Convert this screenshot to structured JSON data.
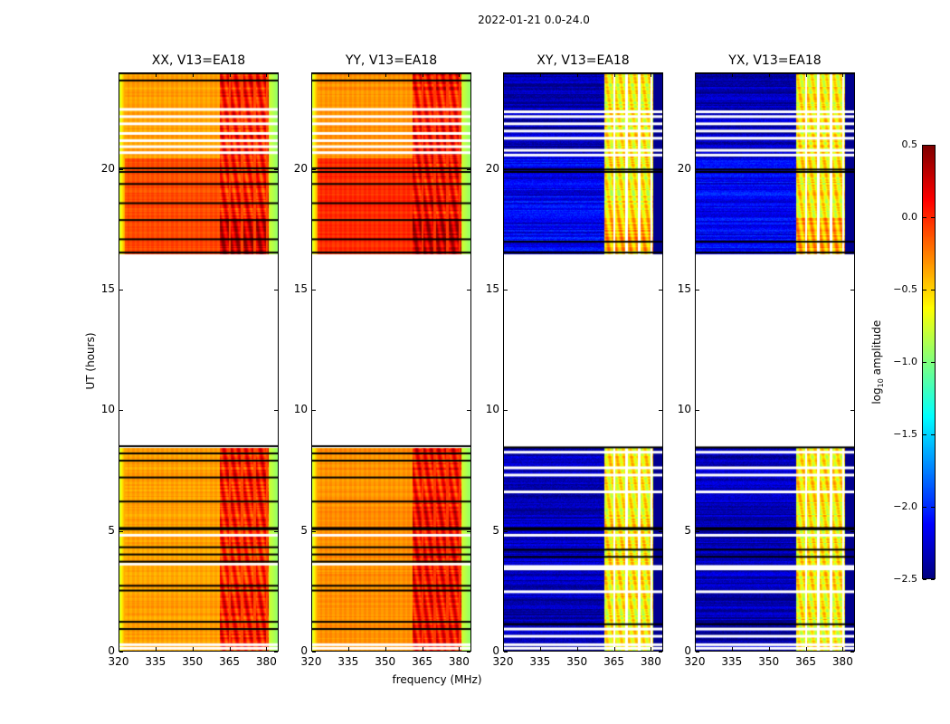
{
  "chart_data": {
    "type": "heatmap",
    "title": "2022-01-21 0.0-24.0",
    "xlabel": "frequency (MHz)",
    "ylabel": "UT (hours)",
    "xlim": [
      320,
      385
    ],
    "ylim": [
      0,
      24
    ],
    "xticks": [
      320,
      335,
      350,
      365,
      380
    ],
    "yticks": [
      0,
      5,
      10,
      15,
      20
    ],
    "no_data_ranges_hours": [
      [
        8.45,
        16.5
      ]
    ],
    "colorbar": {
      "label_main": "log",
      "label_sub": "10",
      "label_rest": " amplitude",
      "colormap": "jet",
      "range": [
        -2.5,
        0.5
      ],
      "ticks": [
        "0.5",
        "0.0",
        "−0.5",
        "−1.0",
        "−1.5",
        "−2.0",
        "−2.5"
      ],
      "tick_values": [
        0.5,
        0.0,
        -0.5,
        -1.0,
        -1.5,
        -2.0,
        -2.5
      ]
    },
    "rfi_band_mhz": [
      361,
      381
    ],
    "panels": [
      {
        "name": "XX",
        "title": "XX, V13=EA18",
        "base_level": -0.35,
        "rfi_level": 0.05,
        "evening_boost": 0.25,
        "edge_level": -0.75,
        "white_flags_hours": [
          22.5,
          22.2,
          21.9,
          21.5,
          21.2,
          20.95,
          20.7,
          0.25,
          0.1,
          3.6,
          4.8
        ],
        "black_flags_hours": [
          24.0,
          23.7,
          20.05,
          19.9,
          19.4,
          18.6,
          17.9,
          17.1,
          16.55,
          8.5,
          8.2,
          7.9,
          7.2,
          6.2,
          5.1,
          5.05,
          4.3,
          4.0,
          3.7,
          2.7,
          2.5,
          1.2,
          0.9
        ]
      },
      {
        "name": "YY",
        "title": "YY, V13=EA18",
        "base_level": -0.3,
        "rfi_level": 0.1,
        "evening_boost": 0.3,
        "edge_level": -0.75,
        "white_flags_hours": [
          22.5,
          22.2,
          21.9,
          21.5,
          21.2,
          20.95,
          20.7,
          0.25,
          0.1,
          3.6,
          4.8
        ],
        "black_flags_hours": [
          24.0,
          23.7,
          20.05,
          19.9,
          19.4,
          18.6,
          17.9,
          17.1,
          16.55,
          8.5,
          8.2,
          7.9,
          7.2,
          6.2,
          5.1,
          5.05,
          4.3,
          4.0,
          3.7,
          2.7,
          2.5,
          1.2,
          0.9
        ]
      },
      {
        "name": "XY",
        "title": "XY, V13=EA18",
        "base_level": -2.35,
        "rfi_level": -0.6,
        "evening_boost": 0.2,
        "edge_level": -2.45,
        "white_flags_hours": [
          22.4,
          22.2,
          21.9,
          21.6,
          21.3,
          20.8,
          20.6,
          8.25,
          7.6,
          7.3,
          6.6,
          4.8,
          3.5,
          3.4,
          2.45,
          0.9,
          0.6,
          0.25,
          0.1
        ],
        "black_flags_hours": [
          24.0,
          20.0,
          19.9,
          17.0,
          16.55,
          8.45,
          5.1,
          5.05,
          4.2,
          3.9,
          1.1
        ]
      },
      {
        "name": "YX",
        "title": "YX, V13=EA18",
        "base_level": -2.35,
        "rfi_level": -0.6,
        "evening_boost": 0.2,
        "edge_level": -2.45,
        "white_flags_hours": [
          22.4,
          22.2,
          21.9,
          21.6,
          21.3,
          20.8,
          20.6,
          8.25,
          7.6,
          7.3,
          6.6,
          4.8,
          3.5,
          3.4,
          2.45,
          0.9,
          0.6,
          0.25,
          0.1
        ],
        "black_flags_hours": [
          24.0,
          20.0,
          19.9,
          17.0,
          16.55,
          8.45,
          5.1,
          5.05,
          4.2,
          3.9,
          1.1
        ]
      }
    ]
  }
}
